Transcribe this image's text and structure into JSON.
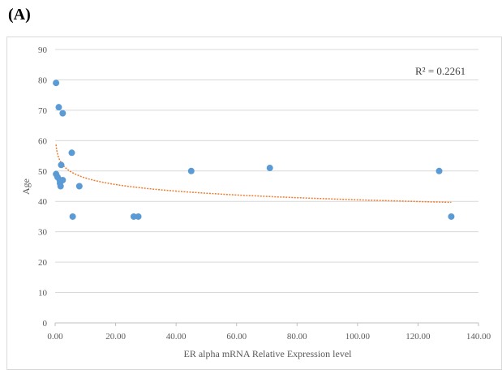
{
  "panel_label": "(A)",
  "chart_data": {
    "type": "scatter",
    "x_label": "ER alpha mRNA Relative Expression level",
    "y_label": "Age",
    "annotation": "R² = 0.2261",
    "color": "#5b9bd5",
    "trendline": {
      "kind": "logarithmic",
      "color": "#ed7d31"
    },
    "grid": true,
    "x": [
      0.3,
      1.2,
      2.5,
      5.5,
      2,
      0.3,
      0.8,
      1.5,
      2.5,
      1.6,
      1.8,
      8,
      5.8,
      26,
      27.5,
      45,
      71,
      127,
      131
    ],
    "values": [
      79,
      71,
      69,
      56,
      52,
      49,
      48,
      47,
      47,
      46,
      45,
      45,
      35,
      35,
      35,
      50,
      51,
      50,
      35
    ],
    "xlim": [
      0,
      140
    ],
    "xticks": [
      {
        "value": 0,
        "label": "0.00"
      },
      {
        "value": 20,
        "label": "20.00"
      },
      {
        "value": 40,
        "label": "40.00"
      },
      {
        "value": 60,
        "label": "60.00"
      },
      {
        "value": 80,
        "label": "80.00"
      },
      {
        "value": 100,
        "label": "100.00"
      },
      {
        "value": 120,
        "label": "120.00"
      },
      {
        "value": 140,
        "label": "140.00"
      }
    ],
    "ylim": [
      0,
      90
    ],
    "yticks": [
      0,
      10,
      20,
      30,
      40,
      50,
      60,
      70,
      80,
      90
    ]
  }
}
